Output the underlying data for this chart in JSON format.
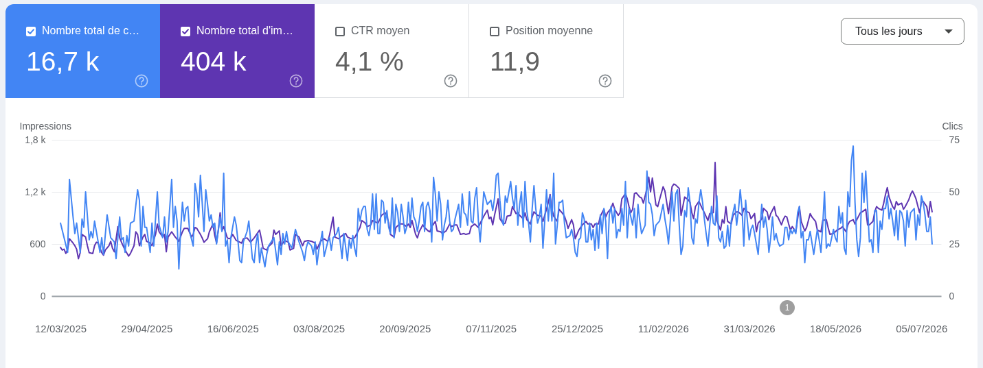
{
  "chart_data": [
    {
      "type": "other",
      "annotations": [
        "Nombre total de c…",
        "16,7 k",
        "Nombre total d'im…",
        "404 k",
        "CTR moyen",
        "4,1 %",
        "Position moyenne",
        "11,9",
        "Tous les jours"
      ],
      "colors": [
        "#4285f4",
        "#5e35b1",
        null,
        null
      ]
    },
    {
      "type": "line",
      "ylabel": "Impressions",
      "y2label": "Clics",
      "grid": "y",
      "xlim": [
        "2025-03-07",
        "2026-07-16"
      ],
      "xticks": [
        {
          "value": "2025-03-12",
          "label": "12/03/2025"
        },
        {
          "value": "2025-04-29",
          "label": "29/04/2025"
        },
        {
          "value": "2025-06-16",
          "label": "16/06/2025"
        },
        {
          "value": "2025-08-03",
          "label": "03/08/2025"
        },
        {
          "value": "2025-09-20",
          "label": "20/09/2025"
        },
        {
          "value": "2025-11-07",
          "label": "07/11/2025"
        },
        {
          "value": "2025-12-25",
          "label": "25/12/2025"
        },
        {
          "value": "2026-02-11",
          "label": "11/02/2026"
        },
        {
          "value": "2026-03-31",
          "label": "31/03/2026"
        },
        {
          "value": "2026-05-18",
          "label": "18/05/2026"
        },
        {
          "value": "2026-07-05",
          "label": "05/07/2026"
        }
      ],
      "ylim": [
        0,
        1800
      ],
      "yticks": [
        0,
        600,
        {
          "value": 1200,
          "label": "1,2 k"
        },
        {
          "value": 1800,
          "label": "1,8 k"
        }
      ],
      "y2lim": [
        0,
        75
      ],
      "y2ticks": [
        0,
        25,
        50,
        75
      ],
      "annotations": [
        "1"
      ],
      "series": [
        {
          "color": "#5e35b1",
          "x": [
            "2025-03-12",
            "2025-03-13",
            "2025-03-14",
            "2025-03-15",
            "2025-03-16",
            "2025-03-17",
            "2025-03-19",
            "2025-03-20",
            "2025-03-21",
            "2025-03-22",
            "2025-03-23",
            "2025-03-24",
            "2025-03-26",
            "2025-03-27",
            "2025-03-28",
            "2025-03-30",
            "2025-03-31",
            "2025-04-01",
            "2025-04-02",
            "2025-04-04",
            "2025-04-05",
            "2025-04-06",
            "2025-04-08",
            "2025-04-09",
            "2025-04-10",
            "2025-04-11",
            "2025-04-13",
            "2025-04-14",
            "2025-04-15",
            "2025-04-17",
            "2025-04-19",
            "2025-04-20",
            "2025-04-22",
            "2025-04-23",
            "2025-04-24",
            "2025-04-25",
            "2025-04-27",
            "2025-04-28",
            "2025-04-29",
            "2025-05-01",
            "2025-05-02",
            "2025-05-04",
            "2025-05-05",
            "2025-05-06",
            "2025-05-08",
            "2025-05-09",
            "2025-05-10",
            "2025-05-11",
            "2025-05-13",
            "2025-05-15",
            "2025-05-17",
            "2025-05-19",
            "2025-05-20",
            "2025-05-22",
            "2025-05-24",
            "2025-05-25",
            "2025-05-26",
            "2025-05-27",
            "2025-05-29",
            "2025-05-30",
            "2025-05-31",
            "2025-06-02",
            "2025-06-03",
            "2025-06-05",
            "2025-06-06",
            "2025-06-07",
            "2025-06-08",
            "2025-06-09",
            "2025-06-10",
            "2025-06-11",
            "2025-06-13",
            "2025-06-14",
            "2025-06-15",
            "2025-06-16",
            "2025-06-18",
            "2025-06-19",
            "2025-06-21",
            "2025-06-22",
            "2025-06-24",
            "2025-06-26",
            "2025-06-28",
            "2025-06-29",
            "2025-07-01",
            "2025-07-02",
            "2025-07-03",
            "2025-07-05",
            "2025-07-06",
            "2025-07-08",
            "2025-07-09",
            "2025-07-10",
            "2025-07-12",
            "2025-07-13",
            "2025-07-15",
            "2025-07-17",
            "2025-07-18",
            "2025-07-20",
            "2025-07-21",
            "2025-07-23",
            "2025-07-25",
            "2025-07-26",
            "2025-07-28",
            "2025-07-30",
            "2025-08-01",
            "2025-08-02",
            "2025-08-04",
            "2025-08-06",
            "2025-08-08",
            "2025-08-09",
            "2025-08-11",
            "2025-08-12",
            "2025-08-14",
            "2025-08-15",
            "2025-08-17",
            "2025-08-18",
            "2025-08-19",
            "2025-08-21",
            "2025-08-23",
            "2025-08-24",
            "2025-08-26",
            "2025-08-27",
            "2025-08-29",
            "2025-08-30",
            "2025-09-01",
            "2025-09-02",
            "2025-09-03",
            "2025-09-05",
            "2025-09-06",
            "2025-09-07",
            "2025-09-09",
            "2025-09-10",
            "2025-09-11",
            "2025-09-12",
            "2025-09-14",
            "2025-09-15",
            "2025-09-17",
            "2025-09-19",
            "2025-09-21",
            "2025-09-22",
            "2025-09-23",
            "2025-09-24",
            "2025-09-26",
            "2025-09-27",
            "2025-09-28",
            "2025-09-30",
            "2025-10-01",
            "2025-10-03",
            "2025-10-04",
            "2025-10-05",
            "2025-10-07",
            "2025-10-08",
            "2025-10-10",
            "2025-10-11",
            "2025-10-13",
            "2025-10-15",
            "2025-10-16",
            "2025-10-18",
            "2025-10-19",
            "2025-10-21",
            "2025-10-23",
            "2025-10-24",
            "2025-10-26",
            "2025-10-27",
            "2025-10-29",
            "2025-10-31",
            "2025-11-02",
            "2025-11-03",
            "2025-11-05",
            "2025-11-06",
            "2025-11-07",
            "2025-11-08",
            "2025-11-09",
            "2025-11-11",
            "2025-11-12",
            "2025-11-14",
            "2025-11-15",
            "2025-11-16",
            "2025-11-18",
            "2025-11-19",
            "2025-11-21",
            "2025-11-22",
            "2025-11-23",
            "2025-11-25",
            "2025-11-26",
            "2025-11-27",
            "2025-11-29",
            "2025-11-30",
            "2025-12-01",
            "2025-12-03",
            "2025-12-05",
            "2025-12-06",
            "2025-12-08",
            "2025-12-09",
            "2025-12-10",
            "2025-12-11",
            "2025-12-12",
            "2025-12-14",
            "2025-12-15",
            "2025-12-17",
            "2025-12-18",
            "2025-12-19",
            "2025-12-20",
            "2025-12-22",
            "2025-12-23",
            "2025-12-24",
            "2025-12-26",
            "2025-12-27",
            "2025-12-28",
            "2025-12-30",
            "2025-12-31",
            "2026-01-02",
            "2026-01-03",
            "2026-01-04",
            "2026-01-06",
            "2026-01-07",
            "2026-01-09",
            "2026-01-10",
            "2026-01-11",
            "2026-01-13",
            "2026-01-14",
            "2026-01-15",
            "2026-01-17",
            "2026-01-18",
            "2026-01-19",
            "2026-01-21",
            "2026-01-22",
            "2026-01-23",
            "2026-01-24",
            "2026-01-25",
            "2026-01-26",
            "2026-01-27",
            "2026-01-29",
            "2026-01-30",
            "2026-01-31",
            "2026-02-02",
            "2026-02-03",
            "2026-02-04",
            "2026-02-05",
            "2026-02-07",
            "2026-02-08",
            "2026-02-09",
            "2026-02-11",
            "2026-02-12",
            "2026-02-13",
            "2026-02-14",
            "2026-02-16",
            "2026-02-17",
            "2026-02-18",
            "2026-02-20",
            "2026-02-21",
            "2026-02-22",
            "2026-02-23",
            "2026-02-25",
            "2026-02-26",
            "2026-02-27",
            "2026-02-28",
            "2026-03-01",
            "2026-03-03",
            "2026-03-05",
            "2026-03-06",
            "2026-03-08",
            "2026-03-09",
            "2026-03-11",
            "2026-03-12",
            "2026-03-13",
            "2026-03-15",
            "2026-03-16",
            "2026-03-17",
            "2026-03-18",
            "2026-03-19",
            "2026-03-21",
            "2026-03-22",
            "2026-03-24",
            "2026-03-25",
            "2026-03-27",
            "2026-03-28",
            "2026-03-30",
            "2026-03-31",
            "2026-04-01",
            "2026-04-03",
            "2026-04-04",
            "2026-04-05",
            "2026-04-07",
            "2026-04-08",
            "2026-04-10",
            "2026-04-11",
            "2026-04-12",
            "2026-04-14",
            "2026-04-15",
            "2026-04-16",
            "2026-04-18",
            "2026-04-19",
            "2026-04-20",
            "2026-04-21",
            "2026-04-22",
            "2026-04-23",
            "2026-04-24",
            "2026-04-26",
            "2026-04-27",
            "2026-04-28",
            "2026-04-29",
            "2026-05-01",
            "2026-05-02",
            "2026-05-04",
            "2026-05-05",
            "2026-05-07",
            "2026-05-08",
            "2026-05-10",
            "2026-05-11",
            "2026-05-13",
            "2026-05-14",
            "2026-05-15",
            "2026-05-17",
            "2026-05-19",
            "2026-05-21",
            "2026-05-22",
            "2026-05-24",
            "2026-05-25",
            "2026-05-26",
            "2026-05-28",
            "2026-05-29",
            "2026-05-30",
            "2026-06-01",
            "2026-06-02",
            "2026-06-04",
            "2026-06-05",
            "2026-06-06",
            "2026-06-08",
            "2026-06-09",
            "2026-06-10",
            "2026-06-11",
            "2026-06-13",
            "2026-06-14",
            "2026-06-15",
            "2026-06-16",
            "2026-06-17",
            "2026-06-19",
            "2026-06-20",
            "2026-06-21",
            "2026-06-22",
            "2026-06-24",
            "2026-06-25",
            "2026-06-26",
            "2026-06-28",
            "2026-06-29",
            "2026-06-30",
            "2026-07-01",
            "2026-07-02",
            "2026-07-04",
            "2026-07-05",
            "2026-07-06",
            "2026-07-08",
            "2026-07-09",
            "2026-07-10",
            "2026-07-11"
          ],
          "values": [
            560,
            530,
            540,
            490,
            540,
            660,
            610,
            580,
            540,
            430,
            500,
            710,
            680,
            580,
            500,
            490,
            580,
            620,
            610,
            500,
            470,
            530,
            580,
            630,
            550,
            510,
            800,
            670,
            620,
            530,
            460,
            490,
            580,
            740,
            710,
            580,
            680,
            710,
            630,
            610,
            580,
            710,
            830,
            740,
            680,
            710,
            510,
            680,
            740,
            680,
            630,
            740,
            780,
            780,
            680,
            710,
            790,
            780,
            710,
            670,
            620,
            660,
            740,
            830,
            700,
            610,
            760,
            960,
            750,
            800,
            670,
            660,
            670,
            710,
            640,
            630,
            610,
            660,
            670,
            620,
            670,
            700,
            760,
            660,
            550,
            530,
            570,
            610,
            760,
            710,
            750,
            580,
            640,
            620,
            530,
            550,
            710,
            680,
            580,
            630,
            640,
            630,
            610,
            540,
            630,
            660,
            630,
            700,
            910,
            680,
            660,
            680,
            710,
            720,
            680,
            660,
            670,
            710,
            790,
            870,
            840,
            800,
            820,
            870,
            860,
            840,
            880,
            930,
            960,
            920,
            840,
            710,
            680,
            790,
            830,
            830,
            800,
            830,
            790,
            870,
            710,
            670,
            740,
            820,
            790,
            750,
            740,
            800,
            860,
            750,
            740,
            720,
            750,
            830,
            800,
            820,
            820,
            710,
            720,
            710,
            720,
            800,
            830,
            790,
            880,
            920,
            990,
            890,
            910,
            820,
            930,
            1120,
            890,
            830,
            840,
            920,
            930,
            1030,
            950,
            960,
            930,
            890,
            960,
            880,
            830,
            910,
            970,
            930,
            920,
            860,
            1000,
            1080,
            1170,
            1000,
            920,
            860,
            1000,
            950,
            920,
            860,
            780,
            880,
            820,
            660,
            760,
            790,
            820,
            860,
            830,
            830,
            790,
            830,
            830,
            920,
            1000,
            910,
            960,
            1010,
            1070,
            1000,
            930,
            960,
            1120,
            1180,
            1120,
            1030,
            960,
            1000,
            1180,
            1190,
            1140,
            1130,
            1070,
            1240,
            1370,
            1200,
            1360,
            1050,
            1030,
            1110,
            1260,
            1210,
            1080,
            950,
            1260,
            1290,
            1280,
            1240,
            930,
            1030,
            1140,
            1110,
            1080,
            960,
            890,
            1030,
            1090,
            1000,
            960,
            870,
            950,
            960,
            1540,
            870,
            760,
            880,
            840,
            1030,
            860,
            830,
            930,
            970,
            970,
            930,
            1010,
            970,
            960,
            890,
            950,
            740,
            840,
            890,
            1010,
            970,
            880,
            950,
            1030,
            930,
            910,
            820,
            880,
            920,
            910,
            830,
            760,
            800,
            740,
            890,
            1030,
            860,
            750,
            790,
            950,
            910,
            860,
            760,
            740,
            870,
            880,
            790,
            710,
            720,
            760,
            780,
            800,
            740,
            820,
            860,
            880,
            830,
            880,
            960,
            970,
            1000,
            820,
            820,
            860,
            970,
            1030,
            1010,
            990,
            1070,
            1170,
            1250,
            1140,
            1030,
            1000,
            1090,
            1050,
            1070,
            1000,
            1030,
            1110,
            1170,
            1210,
            1170,
            1120,
            960,
            1080,
            1090,
            1030,
            910,
            1090,
            970
          ]
        },
        {
          "color": "#4285f4",
          "axis": "y2",
          "x": [
            "2025-03-12",
            "2025-03-16",
            "2025-03-17",
            "2025-03-19",
            "2025-03-20",
            "2025-03-21",
            "2025-03-23",
            "2025-03-24",
            "2025-03-25",
            "2025-03-26",
            "2025-03-28",
            "2025-03-29",
            "2025-03-30",
            "2025-03-31",
            "2025-04-03",
            "2025-04-04",
            "2025-04-05",
            "2025-04-07",
            "2025-04-09",
            "2025-04-11",
            "2025-04-12",
            "2025-04-14",
            "2025-04-15",
            "2025-04-16",
            "2025-04-17",
            "2025-04-18",
            "2025-04-19",
            "2025-04-20",
            "2025-04-22",
            "2025-04-24",
            "2025-04-25",
            "2025-04-26",
            "2025-04-27",
            "2025-04-28",
            "2025-04-29",
            "2025-05-01",
            "2025-05-02",
            "2025-05-03",
            "2025-05-05",
            "2025-05-06",
            "2025-05-08",
            "2025-05-09",
            "2025-05-10",
            "2025-05-11",
            "2025-05-13",
            "2025-05-14",
            "2025-05-15",
            "2025-05-16",
            "2025-05-17",
            "2025-05-18",
            "2025-05-19",
            "2025-05-20",
            "2025-05-21",
            "2025-05-22",
            "2025-05-23",
            "2025-05-25",
            "2025-05-26",
            "2025-05-27",
            "2025-05-28",
            "2025-05-29",
            "2025-05-30",
            "2025-05-31",
            "2025-06-01",
            "2025-06-02",
            "2025-06-03",
            "2025-06-04",
            "2025-06-05",
            "2025-06-06",
            "2025-06-07",
            "2025-06-09",
            "2025-06-10",
            "2025-06-11",
            "2025-06-12",
            "2025-06-13",
            "2025-06-14",
            "2025-06-15",
            "2025-06-17",
            "2025-06-18",
            "2025-06-19",
            "2025-06-20",
            "2025-06-21",
            "2025-06-22",
            "2025-06-24",
            "2025-06-25",
            "2025-06-26",
            "2025-06-27",
            "2025-06-28",
            "2025-06-29",
            "2025-06-30",
            "2025-07-01",
            "2025-07-02",
            "2025-07-04",
            "2025-07-05",
            "2025-07-06",
            "2025-07-09",
            "2025-07-11",
            "2025-07-12",
            "2025-07-13",
            "2025-07-14",
            "2025-07-15",
            "2025-07-16",
            "2025-07-17",
            "2025-07-19",
            "2025-07-21",
            "2025-07-23",
            "2025-07-25",
            "2025-07-26",
            "2025-07-27",
            "2025-07-28",
            "2025-07-30",
            "2025-07-31",
            "2025-08-01",
            "2025-08-02",
            "2025-08-03",
            "2025-08-04",
            "2025-08-05",
            "2025-08-06",
            "2025-08-08",
            "2025-08-09",
            "2025-08-10",
            "2025-08-11",
            "2025-08-13",
            "2025-08-14",
            "2025-08-16",
            "2025-08-17",
            "2025-08-19",
            "2025-08-20",
            "2025-08-21",
            "2025-08-22",
            "2025-08-23",
            "2025-08-24",
            "2025-08-25",
            "2025-08-26",
            "2025-08-27",
            "2025-08-28",
            "2025-08-29",
            "2025-08-30",
            "2025-08-31",
            "2025-09-01",
            "2025-09-02",
            "2025-09-03",
            "2025-09-04",
            "2025-09-05",
            "2025-09-06",
            "2025-09-07",
            "2025-09-08",
            "2025-09-09",
            "2025-09-10",
            "2025-09-11",
            "2025-09-12",
            "2025-09-13",
            "2025-09-14",
            "2025-09-15",
            "2025-09-16",
            "2025-09-17",
            "2025-09-18",
            "2025-09-19",
            "2025-09-20",
            "2025-09-21",
            "2025-09-22",
            "2025-09-23",
            "2025-09-24",
            "2025-09-25",
            "2025-09-26",
            "2025-09-27",
            "2025-09-28",
            "2025-09-29",
            "2025-09-30",
            "2025-10-01",
            "2025-10-02",
            "2025-10-03",
            "2025-10-04",
            "2025-10-05",
            "2025-10-06",
            "2025-10-07",
            "2025-10-08",
            "2025-10-09",
            "2025-10-10",
            "2025-10-11",
            "2025-10-12",
            "2025-10-13",
            "2025-10-14",
            "2025-10-15",
            "2025-10-16",
            "2025-10-17",
            "2025-10-18",
            "2025-10-20",
            "2025-10-21",
            "2025-10-22",
            "2025-10-23",
            "2025-10-24",
            "2025-10-25",
            "2025-10-26",
            "2025-10-27",
            "2025-10-28",
            "2025-10-29",
            "2025-10-30",
            "2025-10-31",
            "2025-11-01",
            "2025-11-02",
            "2025-11-03",
            "2025-11-04",
            "2025-11-05",
            "2025-11-07",
            "2025-11-08",
            "2025-11-09",
            "2025-11-10",
            "2025-11-11",
            "2025-11-12",
            "2025-11-13",
            "2025-11-14",
            "2025-11-15",
            "2025-11-16",
            "2025-11-17",
            "2025-11-18",
            "2025-11-19",
            "2025-11-20",
            "2025-11-21",
            "2025-11-22",
            "2025-11-23",
            "2025-11-24",
            "2025-11-25",
            "2025-11-26",
            "2025-11-27",
            "2025-11-28",
            "2025-11-29",
            "2025-11-30",
            "2025-12-01",
            "2025-12-02",
            "2025-12-03",
            "2025-12-04",
            "2025-12-05",
            "2025-12-06",
            "2025-12-07",
            "2025-12-08",
            "2025-12-09",
            "2025-12-10",
            "2025-12-11",
            "2025-12-12",
            "2025-12-13",
            "2025-12-14",
            "2025-12-15",
            "2025-12-16",
            "2025-12-17",
            "2025-12-18",
            "2025-12-19",
            "2025-12-21",
            "2025-12-22",
            "2025-12-23",
            "2025-12-24",
            "2025-12-25",
            "2025-12-26",
            "2025-12-27",
            "2025-12-28",
            "2025-12-29",
            "2025-12-30",
            "2025-12-31",
            "2026-01-01",
            "2026-01-02",
            "2026-01-03",
            "2026-01-04",
            "2026-01-05",
            "2026-01-06",
            "2026-01-07",
            "2026-01-08",
            "2026-01-09",
            "2026-01-10",
            "2026-01-11",
            "2026-01-12",
            "2026-01-13",
            "2026-01-14",
            "2026-01-15",
            "2026-01-16",
            "2026-01-17",
            "2026-01-18",
            "2026-01-19",
            "2026-01-20",
            "2026-01-21",
            "2026-01-22",
            "2026-01-23",
            "2026-01-24",
            "2026-01-25",
            "2026-01-26",
            "2026-01-27",
            "2026-01-28",
            "2026-01-29",
            "2026-01-30",
            "2026-01-31",
            "2026-02-01",
            "2026-02-02",
            "2026-02-03",
            "2026-02-04",
            "2026-02-05",
            "2026-02-06",
            "2026-02-07",
            "2026-02-09",
            "2026-02-11",
            "2026-02-12",
            "2026-02-13",
            "2026-02-14",
            "2026-02-15",
            "2026-02-16",
            "2026-02-17",
            "2026-02-18",
            "2026-02-19",
            "2026-02-20",
            "2026-02-21",
            "2026-02-22",
            "2026-02-23",
            "2026-02-24",
            "2026-02-25",
            "2026-02-26",
            "2026-02-27",
            "2026-02-28",
            "2026-03-01",
            "2026-03-02",
            "2026-03-03",
            "2026-03-04",
            "2026-03-05",
            "2026-03-06",
            "2026-03-07",
            "2026-03-08",
            "2026-03-09",
            "2026-03-10",
            "2026-03-11",
            "2026-03-12",
            "2026-03-13",
            "2026-03-14",
            "2026-03-15",
            "2026-03-16",
            "2026-03-17",
            "2026-03-18",
            "2026-03-19",
            "2026-03-20",
            "2026-03-21",
            "2026-03-23",
            "2026-03-24",
            "2026-03-25",
            "2026-03-26",
            "2026-03-27",
            "2026-03-28",
            "2026-03-29",
            "2026-03-30",
            "2026-03-31",
            "2026-04-01",
            "2026-04-02",
            "2026-04-03",
            "2026-04-04",
            "2026-04-05",
            "2026-04-06",
            "2026-04-07",
            "2026-04-08",
            "2026-04-09",
            "2026-04-10",
            "2026-04-11",
            "2026-04-12",
            "2026-04-13",
            "2026-04-14",
            "2026-04-15",
            "2026-04-16",
            "2026-04-17",
            "2026-04-19",
            "2026-04-20",
            "2026-04-21",
            "2026-04-22",
            "2026-04-23",
            "2026-04-24",
            "2026-04-25",
            "2026-04-26",
            "2026-04-27",
            "2026-04-28",
            "2026-04-29",
            "2026-04-30",
            "2026-05-01",
            "2026-05-02",
            "2026-05-03",
            "2026-05-04",
            "2026-05-06",
            "2026-05-07",
            "2026-05-08",
            "2026-05-09",
            "2026-05-10",
            "2026-05-11",
            "2026-05-12",
            "2026-05-13",
            "2026-05-14",
            "2026-05-15",
            "2026-05-16",
            "2026-05-17",
            "2026-05-18",
            "2026-05-19",
            "2026-05-20",
            "2026-05-21",
            "2026-05-22",
            "2026-05-23",
            "2026-05-24",
            "2026-05-25",
            "2026-05-26",
            "2026-05-27",
            "2026-05-28",
            "2026-05-29",
            "2026-05-30",
            "2026-05-31",
            "2026-06-01",
            "2026-06-02",
            "2026-06-03",
            "2026-06-04",
            "2026-06-05",
            "2026-06-06",
            "2026-06-07",
            "2026-06-08",
            "2026-06-09",
            "2026-06-10",
            "2026-06-11",
            "2026-06-12",
            "2026-06-13",
            "2026-06-14",
            "2026-06-15",
            "2026-06-16",
            "2026-06-17",
            "2026-06-18",
            "2026-06-19",
            "2026-06-20",
            "2026-06-21",
            "2026-06-22",
            "2026-06-23",
            "2026-06-24",
            "2026-06-25",
            "2026-06-26",
            "2026-06-27",
            "2026-06-28",
            "2026-06-29",
            "2026-06-30",
            "2026-07-01",
            "2026-07-02",
            "2026-07-03",
            "2026-07-04",
            "2026-07-05",
            "2026-07-06",
            "2026-07-07",
            "2026-07-08",
            "2026-07-09",
            "2026-07-10",
            "2026-07-11"
          ],
          "values": [
            35,
            21,
            56,
            38,
            30,
            35,
            21,
            37,
            33,
            50,
            27,
            31,
            28,
            36,
            21,
            28,
            20,
            39,
            28,
            26,
            18,
            38,
            27,
            28,
            21,
            29,
            24,
            35,
            36,
            51,
            46,
            24,
            43,
            33,
            33,
            21,
            35,
            24,
            50,
            34,
            28,
            38,
            26,
            31,
            56,
            33,
            43,
            36,
            13,
            32,
            45,
            36,
            42,
            43,
            31,
            24,
            54,
            49,
            38,
            58,
            45,
            31,
            51,
            44,
            36,
            39,
            33,
            35,
            25,
            38,
            31,
            59,
            24,
            27,
            16,
            28,
            38,
            34,
            26,
            17,
            16,
            26,
            31,
            36,
            27,
            18,
            16,
            25,
            30,
            16,
            23,
            14,
            20,
            24,
            28,
            15,
            26,
            20,
            30,
            25,
            31,
            26,
            23,
            32,
            26,
            21,
            17,
            23,
            26,
            24,
            20,
            26,
            15,
            22,
            26,
            31,
            19,
            26,
            28,
            22,
            28,
            30,
            33,
            18,
            30,
            17,
            27,
            23,
            29,
            23,
            19,
            42,
            36,
            41,
            43,
            43,
            32,
            29,
            35,
            49,
            32,
            49,
            30,
            30,
            46,
            45,
            35,
            41,
            33,
            30,
            47,
            28,
            44,
            40,
            31,
            44,
            38,
            30,
            33,
            45,
            34,
            47,
            38,
            36,
            31,
            36,
            43,
            45,
            31,
            43,
            45,
            41,
            26,
            57,
            49,
            36,
            50,
            44,
            27,
            34,
            38,
            46,
            36,
            31,
            32,
            37,
            44,
            33,
            49,
            40,
            39,
            34,
            50,
            36,
            35,
            47,
            52,
            36,
            26,
            37,
            50,
            47,
            44,
            46,
            41,
            47,
            58,
            59,
            46,
            37,
            34,
            48,
            45,
            50,
            55,
            47,
            42,
            53,
            34,
            44,
            50,
            33,
            55,
            41,
            35,
            26,
            42,
            53,
            42,
            35,
            38,
            44,
            23,
            36,
            51,
            36,
            48,
            36,
            59,
            25,
            34,
            45,
            45,
            46,
            35,
            28,
            29,
            32,
            28,
            21,
            19,
            27,
            28,
            40,
            37,
            26,
            26,
            35,
            27,
            32,
            22,
            35,
            23,
            39,
            30,
            42,
            36,
            18,
            39,
            43,
            35,
            42,
            28,
            32,
            31,
            42,
            34,
            55,
            28,
            42,
            38,
            34,
            42,
            28,
            44,
            36,
            30,
            32,
            34,
            60,
            45,
            44,
            39,
            29,
            34,
            36,
            44,
            37,
            32,
            25,
            36,
            50,
            36,
            49,
            51,
            34,
            20,
            24,
            41,
            38,
            52,
            45,
            28,
            25,
            37,
            35,
            45,
            51,
            45,
            37,
            30,
            24,
            34,
            43,
            35,
            34,
            48,
            28,
            26,
            31,
            23,
            24,
            34,
            24,
            36,
            44,
            34,
            41,
            51,
            42,
            24,
            46,
            36,
            27,
            32,
            34,
            30,
            25,
            20,
            32,
            44,
            33,
            38,
            32,
            21,
            28,
            38,
            27,
            30,
            26,
            24,
            25,
            33,
            33,
            27,
            32,
            30,
            32,
            30,
            40,
            43,
            28,
            31,
            16,
            27,
            27,
            31,
            20,
            26,
            32,
            27,
            21,
            34,
            50,
            23,
            25,
            24,
            28,
            32,
            28,
            26,
            43,
            35,
            40,
            23,
            20,
            50,
            43,
            65,
            72,
            45,
            27,
            19,
            28,
            59,
            45,
            60,
            43,
            26,
            27,
            21,
            41,
            41,
            21,
            36,
            32,
            42,
            42,
            48,
            37,
            42,
            36,
            29,
            41,
            27,
            41,
            40,
            36,
            24,
            41,
            33,
            40,
            41,
            42,
            27,
            39,
            34,
            48,
            45,
            39,
            31,
            31,
            38,
            25
          ]
        }
      ]
    }
  ]
}
